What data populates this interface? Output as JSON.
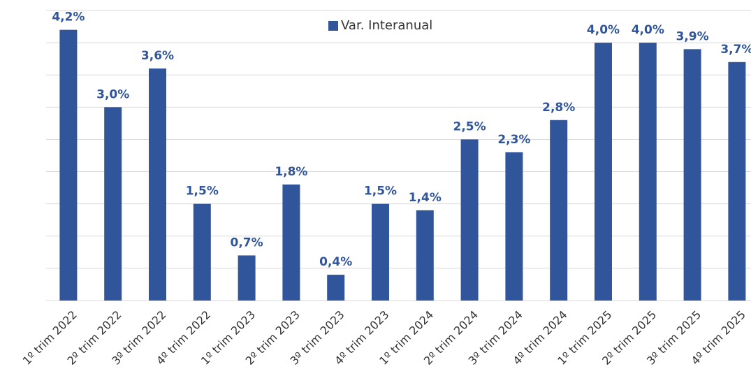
{
  "chart_data": {
    "type": "bar",
    "categories": [
      "1º trim 2022",
      "2º trim 2022",
      "3º trim 2022",
      "4º trim 2022",
      "1º trim 2023",
      "2º trim 2023",
      "3º trim 2023",
      "4º trim 2023",
      "1º trim 2024",
      "2º trim 2024",
      "3º trim 2024",
      "4º trim 2024",
      "1º trim 2025",
      "2º trim 2025",
      "3º trim 2025",
      "4º trim 2025"
    ],
    "series": [
      {
        "name": "Var. Interanual",
        "color": "#30559a",
        "values": [
          4.2,
          3.0,
          3.6,
          1.5,
          0.7,
          1.8,
          0.4,
          1.5,
          1.4,
          2.5,
          2.3,
          2.8,
          4.0,
          4.0,
          3.9,
          3.7
        ],
        "value_labels": [
          "4,2%",
          "3,0%",
          "3,6%",
          "1,5%",
          "0,7%",
          "1,8%",
          "0,4%",
          "1,5%",
          "1,4%",
          "2,5%",
          "2,3%",
          "2,8%",
          "4,0%",
          "4,0%",
          "3,9%",
          "3,7%"
        ]
      }
    ],
    "ylim": [
      0,
      4.5
    ],
    "yticks": [
      0,
      0.5,
      1,
      1.5,
      2,
      2.5,
      3,
      3.5,
      4,
      4.5
    ],
    "grid": true,
    "legend": "top"
  }
}
